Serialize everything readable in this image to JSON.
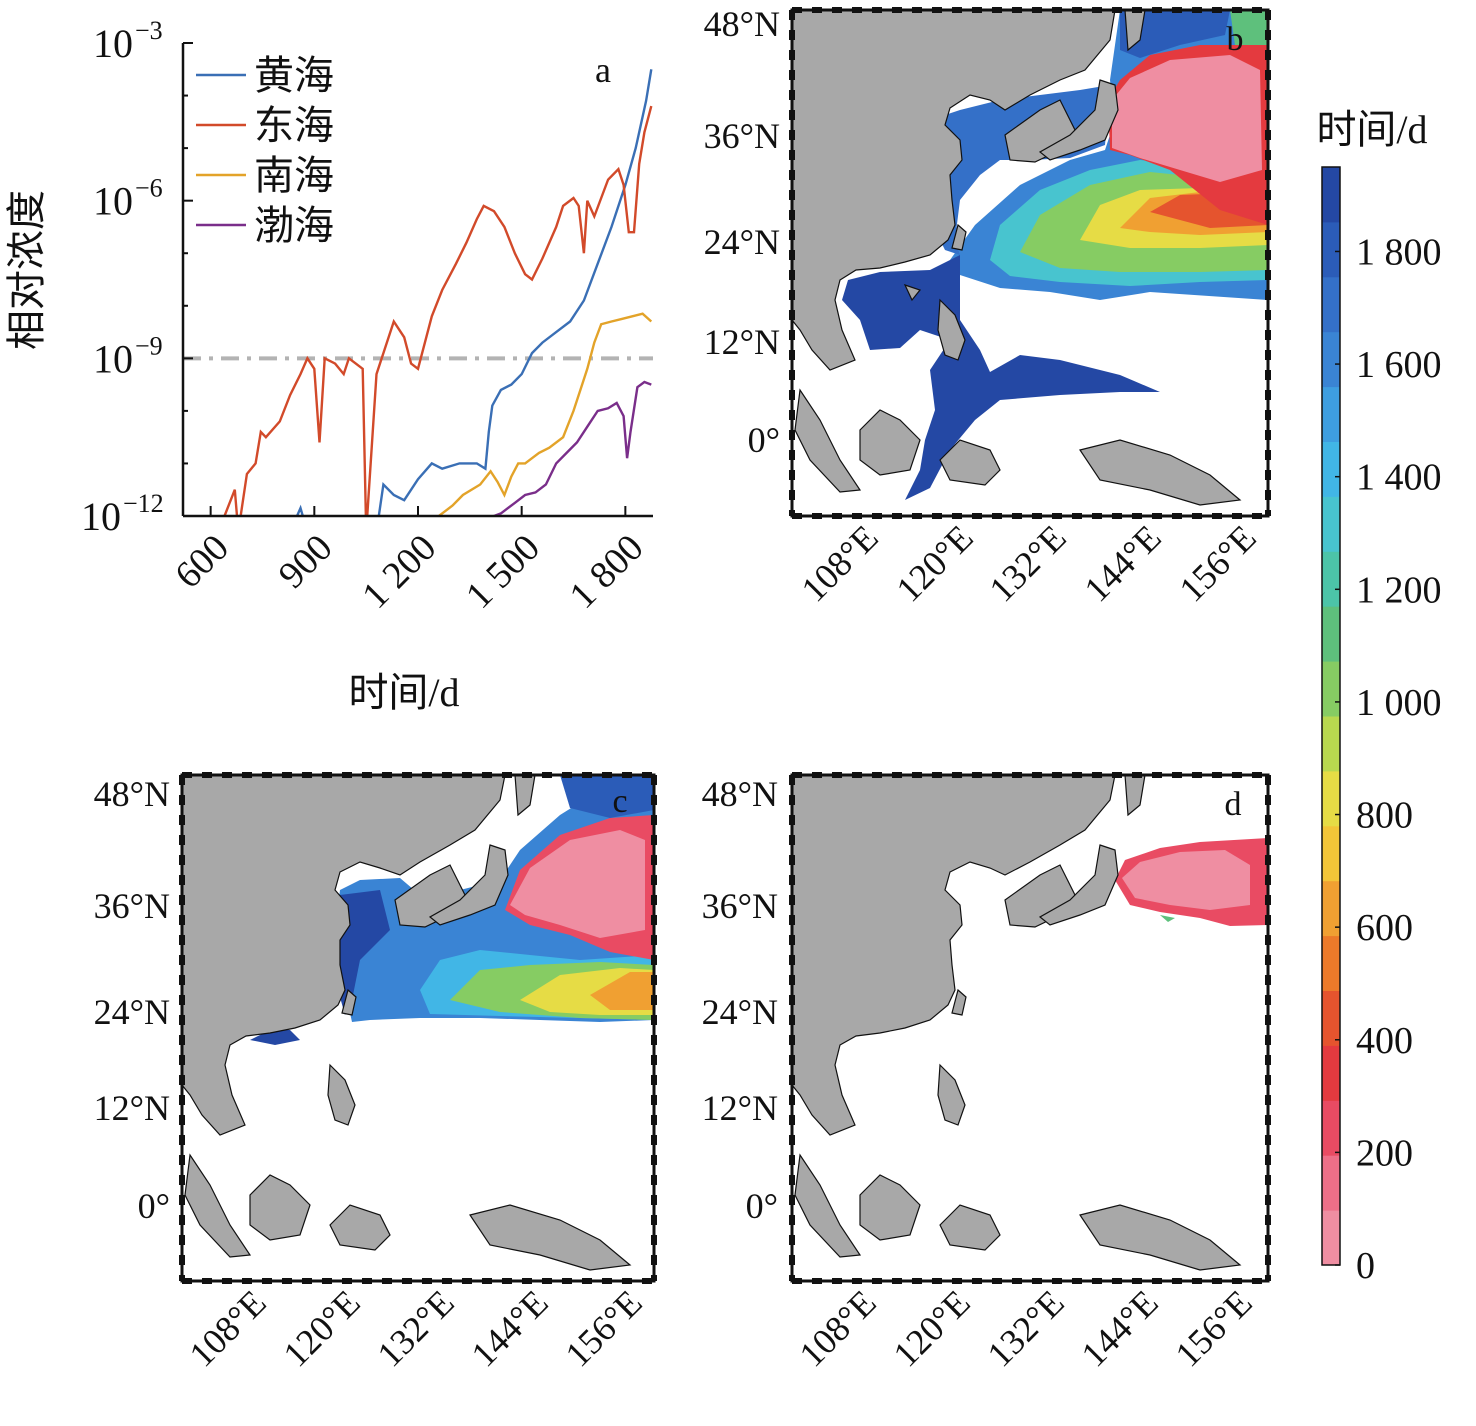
{
  "chart_data": [
    {
      "panel": "a",
      "type": "line",
      "xlabel": "时间/d",
      "ylabel": "相对浓度",
      "yscale": "log",
      "xlim": [
        520,
        1880
      ],
      "ylim_exponent": [
        -12,
        -3
      ],
      "xticks": [
        {
          "value": 600,
          "label": "600"
        },
        {
          "value": 900,
          "label": "900"
        },
        {
          "value": 1200,
          "label": "1 200"
        },
        {
          "value": 1500,
          "label": "1 500"
        },
        {
          "value": 1800,
          "label": "1 800"
        }
      ],
      "yticks": [
        {
          "exp": -3,
          "base": "10",
          "sup": "−3"
        },
        {
          "exp": -6,
          "base": "10",
          "sup": "−6"
        },
        {
          "exp": -9,
          "base": "10",
          "sup": "−9"
        },
        {
          "exp": -12,
          "base": "10",
          "sup": "−12"
        }
      ],
      "threshold": {
        "exp": -9,
        "color": "#b3b3b3"
      },
      "legend_position": "top-left",
      "series": [
        {
          "name": "黄海",
          "color": "#3a6fb5",
          "points": [
            [
              830,
              -12.3
            ],
            [
              860,
              -11.85
            ],
            [
              880,
              -12.3
            ],
            [
              1080,
              -12.3
            ],
            [
              1100,
              -11.4
            ],
            [
              1130,
              -11.6
            ],
            [
              1160,
              -11.7
            ],
            [
              1200,
              -11.3
            ],
            [
              1240,
              -11.0
            ],
            [
              1270,
              -11.1
            ],
            [
              1320,
              -11.0
            ],
            [
              1370,
              -11.0
            ],
            [
              1395,
              -11.1
            ],
            [
              1405,
              -10.4
            ],
            [
              1415,
              -9.9
            ],
            [
              1440,
              -9.6
            ],
            [
              1470,
              -9.5
            ],
            [
              1500,
              -9.3
            ],
            [
              1530,
              -8.9
            ],
            [
              1560,
              -8.7
            ],
            [
              1600,
              -8.5
            ],
            [
              1640,
              -8.3
            ],
            [
              1680,
              -7.9
            ],
            [
              1720,
              -7.2
            ],
            [
              1760,
              -6.5
            ],
            [
              1800,
              -5.7
            ],
            [
              1830,
              -5.0
            ],
            [
              1860,
              -4.1
            ],
            [
              1875,
              -3.5
            ]
          ]
        },
        {
          "name": "东海",
          "color": "#d24a2a",
          "points": [
            [
              600,
              -12.3
            ],
            [
              640,
              -12.0
            ],
            [
              670,
              -11.5
            ],
            [
              680,
              -12.3
            ],
            [
              705,
              -11.2
            ],
            [
              730,
              -11.0
            ],
            [
              745,
              -10.4
            ],
            [
              760,
              -10.5
            ],
            [
              800,
              -10.2
            ],
            [
              830,
              -9.7
            ],
            [
              860,
              -9.3
            ],
            [
              880,
              -9.0
            ],
            [
              900,
              -9.2
            ],
            [
              915,
              -10.6
            ],
            [
              930,
              -9.0
            ],
            [
              960,
              -9.1
            ],
            [
              985,
              -9.3
            ],
            [
              1000,
              -9.0
            ],
            [
              1020,
              -9.1
            ],
            [
              1040,
              -9.2
            ],
            [
              1050,
              -12.3
            ],
            [
              1080,
              -9.3
            ],
            [
              1100,
              -8.9
            ],
            [
              1130,
              -8.3
            ],
            [
              1160,
              -8.6
            ],
            [
              1180,
              -9.1
            ],
            [
              1200,
              -9.2
            ],
            [
              1220,
              -8.7
            ],
            [
              1240,
              -8.2
            ],
            [
              1270,
              -7.7
            ],
            [
              1310,
              -7.2
            ],
            [
              1340,
              -6.8
            ],
            [
              1370,
              -6.35
            ],
            [
              1390,
              -6.1
            ],
            [
              1420,
              -6.2
            ],
            [
              1450,
              -6.5
            ],
            [
              1480,
              -7.0
            ],
            [
              1510,
              -7.4
            ],
            [
              1530,
              -7.5
            ],
            [
              1560,
              -7.1
            ],
            [
              1600,
              -6.5
            ],
            [
              1620,
              -6.1
            ],
            [
              1650,
              -5.95
            ],
            [
              1665,
              -6.1
            ],
            [
              1680,
              -7.0
            ],
            [
              1690,
              -6.0
            ],
            [
              1710,
              -6.3
            ],
            [
              1750,
              -5.6
            ],
            [
              1780,
              -5.4
            ],
            [
              1795,
              -5.7
            ],
            [
              1810,
              -6.6
            ],
            [
              1825,
              -6.6
            ],
            [
              1840,
              -5.3
            ],
            [
              1855,
              -4.7
            ],
            [
              1875,
              -4.2
            ]
          ]
        },
        {
          "name": "南海",
          "color": "#e3a329",
          "points": [
            [
              1170,
              -12.3
            ],
            [
              1200,
              -12.3
            ],
            [
              1300,
              -11.8
            ],
            [
              1330,
              -11.6
            ],
            [
              1380,
              -11.4
            ],
            [
              1410,
              -11.15
            ],
            [
              1430,
              -11.35
            ],
            [
              1450,
              -11.6
            ],
            [
              1470,
              -11.25
            ],
            [
              1490,
              -11.0
            ],
            [
              1510,
              -11.0
            ],
            [
              1530,
              -10.9
            ],
            [
              1550,
              -10.8
            ],
            [
              1580,
              -10.7
            ],
            [
              1620,
              -10.5
            ],
            [
              1650,
              -10.0
            ],
            [
              1670,
              -9.6
            ],
            [
              1690,
              -9.2
            ],
            [
              1710,
              -8.7
            ],
            [
              1730,
              -8.35
            ],
            [
              1760,
              -8.3
            ],
            [
              1790,
              -8.25
            ],
            [
              1820,
              -8.2
            ],
            [
              1850,
              -8.15
            ],
            [
              1875,
              -8.3
            ]
          ]
        },
        {
          "name": "渤海",
          "color": "#7a2e8a",
          "points": [
            [
              1320,
              -12.3
            ],
            [
              1360,
              -12.2
            ],
            [
              1400,
              -12.05
            ],
            [
              1440,
              -11.95
            ],
            [
              1480,
              -11.75
            ],
            [
              1510,
              -11.6
            ],
            [
              1540,
              -11.55
            ],
            [
              1570,
              -11.4
            ],
            [
              1600,
              -11.0
            ],
            [
              1630,
              -10.8
            ],
            [
              1660,
              -10.6
            ],
            [
              1690,
              -10.3
            ],
            [
              1720,
              -10.0
            ],
            [
              1750,
              -9.95
            ],
            [
              1775,
              -9.85
            ],
            [
              1795,
              -10.1
            ],
            [
              1805,
              -10.9
            ],
            [
              1815,
              -10.4
            ],
            [
              1835,
              -9.55
            ],
            [
              1855,
              -9.45
            ],
            [
              1875,
              -9.5
            ]
          ]
        }
      ]
    },
    {
      "panel": "b",
      "type": "heatmap",
      "description_label": "b",
      "lat_ticks": [
        "48°N",
        "36°N",
        "24°N",
        "12°N",
        "0°"
      ],
      "lon_ticks": [
        "108°E",
        "120°E",
        "132°E",
        "144°E",
        "156°E"
      ]
    },
    {
      "panel": "c",
      "type": "heatmap",
      "description_label": "c",
      "lat_ticks": [
        "48°N",
        "36°N",
        "24°N",
        "12°N",
        "0°"
      ],
      "lon_ticks": [
        "108°E",
        "120°E",
        "132°E",
        "144°E",
        "156°E"
      ]
    },
    {
      "panel": "d",
      "type": "heatmap",
      "description_label": "d",
      "lat_ticks": [
        "48°N",
        "36°N",
        "24°N",
        "12°N",
        "0°"
      ],
      "lon_ticks": [
        "108°E",
        "120°E",
        "132°E",
        "144°E",
        "156°E"
      ]
    }
  ],
  "colorbar": {
    "title": "时间/d",
    "range": [
      0,
      1950
    ],
    "ticks": [
      {
        "value": 1800,
        "label": "1 800"
      },
      {
        "value": 1600,
        "label": "1 600"
      },
      {
        "value": 1400,
        "label": "1 400"
      },
      {
        "value": 1200,
        "label": "1 200"
      },
      {
        "value": 1000,
        "label": "1 000"
      },
      {
        "value": 800,
        "label": "800"
      },
      {
        "value": 600,
        "label": "600"
      },
      {
        "value": 400,
        "label": "400"
      },
      {
        "value": 200,
        "label": "200"
      },
      {
        "value": 0,
        "label": "0"
      }
    ],
    "colors": [
      "#ef8ea2",
      "#ed6f88",
      "#e94b63",
      "#e43a3f",
      "#e5542e",
      "#ec7a2a",
      "#f0a032",
      "#f3c538",
      "#e6dc45",
      "#b8d84f",
      "#86cc63",
      "#5ec07c",
      "#4cc4a8",
      "#48c4cf",
      "#41b6e6",
      "#3e9ee0",
      "#3a84d4",
      "#3470c8",
      "#2b5cb8",
      "#2448a4"
    ]
  },
  "map_colors": {
    "land": "#a8a8a8",
    "ocean": "#ffffff",
    "coast": "#111111"
  }
}
